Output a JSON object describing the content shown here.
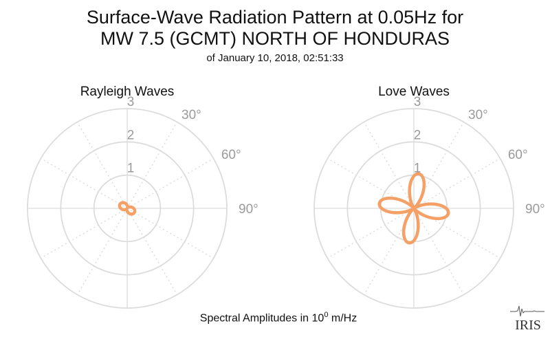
{
  "header": {
    "title_line1": "Surface-Wave Radiation Pattern at 0.05Hz for",
    "title_line2": "MW 7.5 (GCMT) NORTH OF HONDURAS",
    "subtitle": "of January 10, 2018, 02:51:33"
  },
  "footer": {
    "prefix": "Spectral Amplitudes in ",
    "base": "10",
    "exponent": "0",
    "unit": " m/Hz"
  },
  "logo": {
    "text": "IRIS",
    "icon": "iris-seismogram-logo"
  },
  "colors": {
    "pattern": "#f5a067",
    "grid": "#dcdcdc",
    "tick_label": "#9a9a9a"
  },
  "chart_data": [
    {
      "type": "polar",
      "title": "Rayleigh Waves",
      "radial_ticks": [
        1,
        2,
        3
      ],
      "radial_max": 3,
      "angle_ticks": [
        0,
        30,
        60,
        90,
        120,
        150,
        180,
        210,
        240,
        270,
        300,
        330
      ],
      "angle_labels": [
        "30°",
        "60°",
        "90°"
      ],
      "series": [
        {
          "pattern": "two-lobe",
          "axis_deg": 120,
          "lobe_max": 0.25,
          "lobe_min": 0.03,
          "n": 1
        }
      ]
    },
    {
      "type": "polar",
      "title": "Love Waves",
      "radial_ticks": [
        1,
        2,
        3
      ],
      "radial_max": 3,
      "angle_ticks": [
        0,
        30,
        60,
        90,
        120,
        150,
        180,
        210,
        240,
        270,
        300,
        330
      ],
      "angle_labels": [
        "30°",
        "60°",
        "90°"
      ],
      "series": [
        {
          "pattern": "four-lobe",
          "axis_deg": 8,
          "lobe_max": 1.05,
          "lobe_min": 0,
          "n": 2
        }
      ]
    }
  ]
}
